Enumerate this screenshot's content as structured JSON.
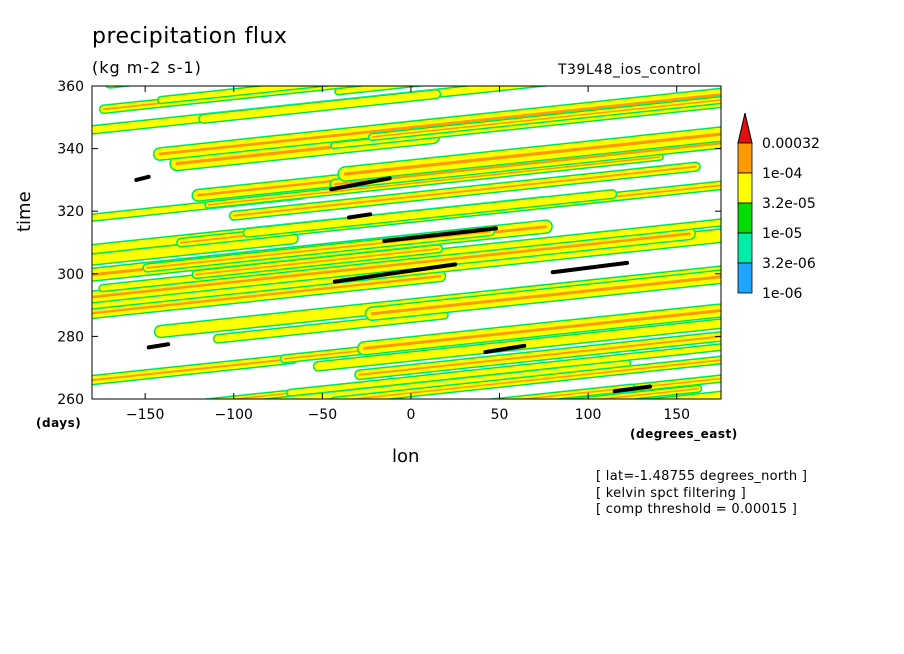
{
  "chart_data": {
    "type": "heatmap",
    "title": "precipitation flux",
    "units": "(kg m-2 s-1)",
    "run_label": "T39L48_ios_control",
    "xlabel": "lon",
    "ylabel": "time",
    "x_units": "(degrees_east)",
    "y_units": "(days)",
    "xlim": [
      -180,
      175
    ],
    "ylim": [
      260,
      360
    ],
    "x_ticks": [
      -150,
      -100,
      -50,
      0,
      50,
      100,
      150
    ],
    "y_ticks": [
      260,
      280,
      300,
      320,
      340,
      360
    ],
    "colorbar": {
      "levels": [
        "0.00032",
        "1e-04",
        "3.2e-05",
        "1e-05",
        "3.2e-06",
        "1e-06"
      ],
      "colors": [
        "#e01010",
        "#ff9900",
        "#ffff00",
        "#00dd00",
        "#00eeaa",
        "#1ea5ff"
      ]
    },
    "notes": [
      "[ lat=-1.48755 degrees_north ]",
      "[ kelvin spct filtering ]",
      "[ comp threshold = 0.00015 ]"
    ],
    "threshold_segments": [
      {
        "lon": [
          -155,
          -148
        ],
        "time": [
          330,
          331
        ]
      },
      {
        "lon": [
          -45,
          -12
        ],
        "time": [
          327,
          330.5
        ]
      },
      {
        "lon": [
          -35,
          -23
        ],
        "time": [
          318,
          319
        ]
      },
      {
        "lon": [
          -15,
          48
        ],
        "time": [
          310.5,
          314.5
        ]
      },
      {
        "lon": [
          -43,
          25
        ],
        "time": [
          297.5,
          303
        ]
      },
      {
        "lon": [
          80,
          122
        ],
        "time": [
          300.5,
          303.5
        ]
      },
      {
        "lon": [
          -148,
          -137
        ],
        "time": [
          276.5,
          277.5
        ]
      },
      {
        "lon": [
          42,
          64
        ],
        "time": [
          275,
          277
        ]
      },
      {
        "lon": [
          115,
          135
        ],
        "time": [
          262.5,
          264
        ]
      }
    ]
  }
}
